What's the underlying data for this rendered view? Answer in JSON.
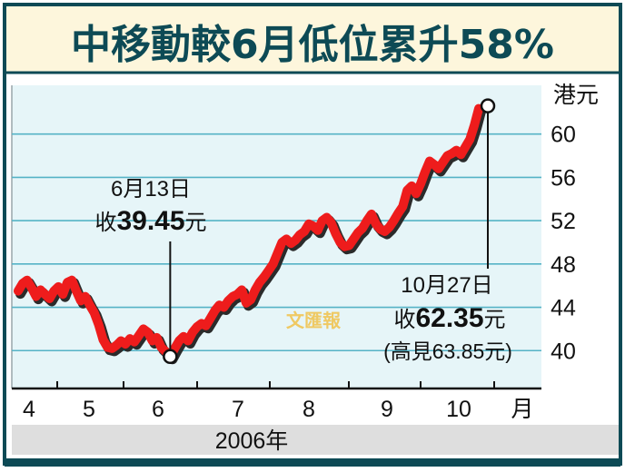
{
  "colors": {
    "accent": "#0d4a55",
    "title_band": "#fdf6dc",
    "plot_bg": "#e6f5f8",
    "grid": "#55b3c6",
    "line": "#ee1c1c",
    "line_shadow": "#2b2b2b",
    "footer_band": "#dedede"
  },
  "watermark": "文匯報",
  "chart_data": {
    "type": "line",
    "title": "中移動較6月低位累升58%",
    "yunit": "港元",
    "xunit": "月",
    "xlabel": "2006年",
    "ylim": [
      36.5,
      64.5
    ],
    "yticks": [
      "40",
      "44",
      "48",
      "52",
      "56",
      "60"
    ],
    "months": [
      "4",
      "5",
      "6",
      "7",
      "8",
      "9",
      "10"
    ],
    "grid": true,
    "series": [
      {
        "values": [
          45.5,
          46.2,
          46.5,
          45.8,
          45.0,
          45.6,
          45.2,
          44.8,
          45.5,
          45.9,
          45.2,
          46.3,
          46.5,
          45.5,
          44.6,
          45.0,
          44.2,
          43.5,
          42.4,
          41.0,
          40.3,
          40.2,
          40.5,
          40.9,
          40.6,
          41.1,
          40.8,
          41.4,
          42.0,
          41.7,
          40.9,
          41.2,
          40.3,
          39.9,
          39.45,
          40.2,
          40.9,
          41.3,
          40.9,
          41.7,
          42.2,
          42.5,
          42.3,
          43.0,
          43.7,
          44.2,
          44.0,
          44.6,
          45.0,
          45.2,
          45.6,
          44.4,
          44.7,
          45.6,
          46.3,
          46.8,
          47.4,
          48.0,
          49.0,
          50.0,
          50.3,
          49.9,
          50.2,
          50.7,
          51.0,
          51.7,
          51.5,
          51.1,
          52.0,
          52.3,
          51.8,
          50.8,
          50.0,
          49.6,
          49.7,
          50.3,
          50.9,
          51.3,
          52.0,
          52.6,
          51.7,
          51.2,
          51.0,
          51.4,
          52.0,
          52.7,
          53.3,
          54.8,
          55.2,
          54.5,
          55.4,
          56.5,
          57.5,
          57.2,
          56.8,
          57.4,
          58.0,
          58.2,
          58.5,
          58.1,
          58.8,
          59.5,
          60.8,
          62.35
        ]
      }
    ],
    "annotations": [
      {
        "date_line": "6月13日",
        "prefix": "收",
        "value": "39.45",
        "suffix": "元",
        "point_index": 34
      },
      {
        "date_line": "10月27日",
        "prefix": "收",
        "value": "62.35",
        "suffix": "元",
        "note": "(高見63.85元)",
        "point_index": 103
      }
    ]
  }
}
